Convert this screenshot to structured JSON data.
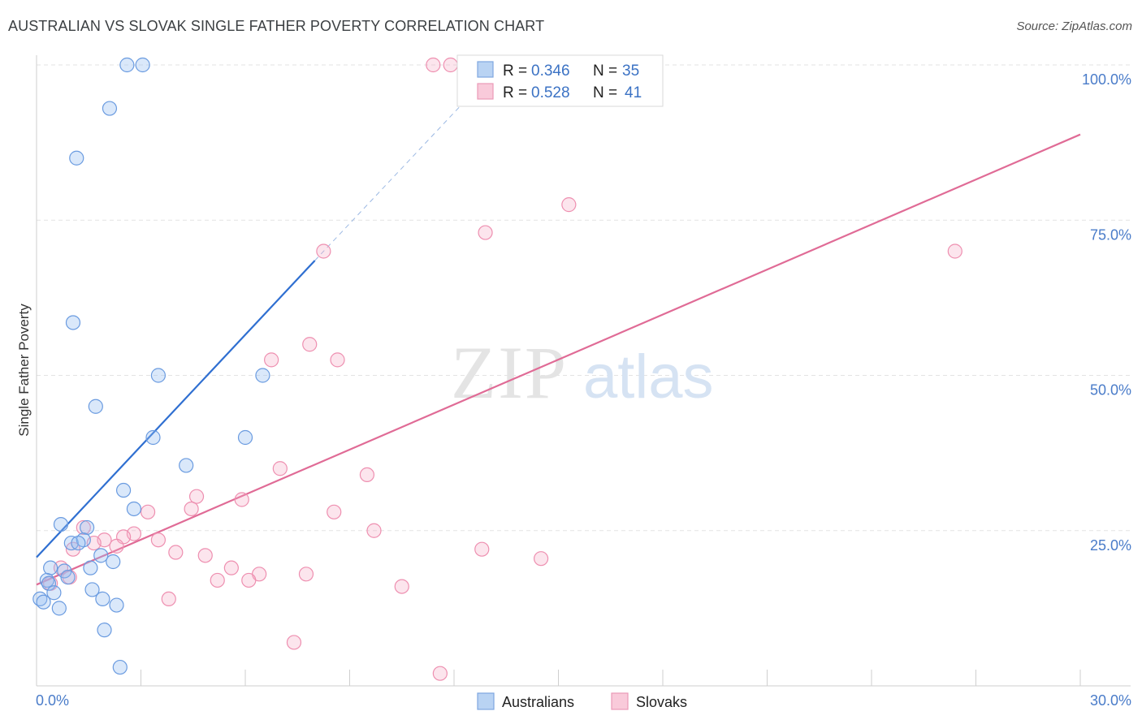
{
  "title": "AUSTRALIAN VS SLOVAK SINGLE FATHER POVERTY CORRELATION CHART",
  "source": "Source: ZipAtlas.com",
  "chart_data": {
    "type": "scatter",
    "ylabel": "Single Father Poverty",
    "x_tick_labels": [
      "0.0%",
      "30.0%"
    ],
    "y_tick_labels": [
      "25.0%",
      "50.0%",
      "75.0%",
      "100.0%"
    ],
    "xlim": [
      0,
      30
    ],
    "ylim": [
      0,
      100
    ],
    "grid": true,
    "legend_position": "top-center",
    "colors": {
      "australians": "#6a9be0",
      "slovaks": "#ee8fb0",
      "aus_line": "#2f6fd1",
      "slo_line": "#e06b96"
    },
    "stats": [
      {
        "r_label": "R =",
        "r": "0.346",
        "n_label": "N =",
        "n": "35"
      },
      {
        "r_label": "R =",
        "r": "0.528",
        "n_label": "N =",
        "n": "41"
      }
    ],
    "series": [
      {
        "name": "Australians",
        "trend": {
          "x0": 0,
          "y0": 20.7,
          "x1": 8.0,
          "y1": 68.5,
          "dash_to_x": 12.2,
          "dash_to_y": 93.5
        },
        "points": [
          [
            2.6,
            100
          ],
          [
            3.05,
            100
          ],
          [
            2.1,
            93
          ],
          [
            1.15,
            85
          ],
          [
            1.05,
            58.5
          ],
          [
            3.5,
            50
          ],
          [
            6.5,
            50
          ],
          [
            1.7,
            45
          ],
          [
            3.35,
            40
          ],
          [
            6.0,
            40
          ],
          [
            4.3,
            35.5
          ],
          [
            2.5,
            31.5
          ],
          [
            2.8,
            28.5
          ],
          [
            0.7,
            26
          ],
          [
            1.45,
            25.5
          ],
          [
            1.0,
            23
          ],
          [
            1.35,
            23.5
          ],
          [
            1.2,
            23
          ],
          [
            1.85,
            21
          ],
          [
            2.2,
            20
          ],
          [
            0.4,
            19
          ],
          [
            0.8,
            18.5
          ],
          [
            0.9,
            17.5
          ],
          [
            1.55,
            19
          ],
          [
            0.3,
            17
          ],
          [
            0.35,
            16.5
          ],
          [
            0.5,
            15
          ],
          [
            1.6,
            15.5
          ],
          [
            0.1,
            14
          ],
          [
            1.9,
            14
          ],
          [
            0.2,
            13.5
          ],
          [
            2.3,
            13
          ],
          [
            0.65,
            12.5
          ],
          [
            1.95,
            9
          ],
          [
            2.4,
            3
          ]
        ]
      },
      {
        "name": "Slovaks",
        "trend": {
          "x0": 0,
          "y0": 16.3,
          "x1": 30,
          "y1": 88.8
        },
        "points": [
          [
            11.4,
            100
          ],
          [
            11.9,
            100
          ],
          [
            15.3,
            77.5
          ],
          [
            12.9,
            73
          ],
          [
            8.25,
            70
          ],
          [
            26.4,
            70
          ],
          [
            7.85,
            55
          ],
          [
            6.75,
            52.5
          ],
          [
            8.65,
            52.5
          ],
          [
            7.0,
            35
          ],
          [
            9.5,
            34
          ],
          [
            4.6,
            30.5
          ],
          [
            5.9,
            30
          ],
          [
            4.45,
            28.5
          ],
          [
            8.55,
            28
          ],
          [
            3.2,
            28
          ],
          [
            9.7,
            25
          ],
          [
            1.35,
            25.5
          ],
          [
            2.8,
            24.5
          ],
          [
            2.5,
            24
          ],
          [
            1.95,
            23.5
          ],
          [
            3.5,
            23.5
          ],
          [
            1.65,
            23
          ],
          [
            2.3,
            22.5
          ],
          [
            1.05,
            22
          ],
          [
            12.8,
            22
          ],
          [
            4.0,
            21.5
          ],
          [
            4.85,
            21
          ],
          [
            14.5,
            20.5
          ],
          [
            0.7,
            19
          ],
          [
            5.6,
            19
          ],
          [
            6.4,
            18
          ],
          [
            7.75,
            18
          ],
          [
            0.95,
            17.5
          ],
          [
            6.1,
            17
          ],
          [
            5.2,
            17
          ],
          [
            0.4,
            16.5
          ],
          [
            10.5,
            16
          ],
          [
            3.8,
            14
          ],
          [
            7.4,
            7
          ],
          [
            11.6,
            2
          ]
        ]
      }
    ]
  }
}
